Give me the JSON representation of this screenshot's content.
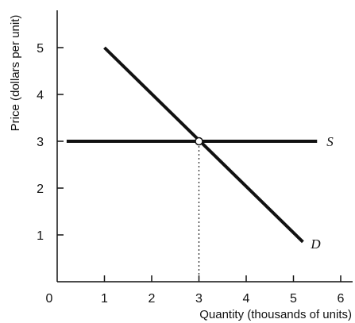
{
  "chart_data": {
    "type": "line",
    "title": "",
    "xlabel": "Quantity (thousands of units)",
    "ylabel": "Price (dollars per unit)",
    "xlim": [
      0,
      6.3
    ],
    "ylim": [
      0,
      5.8
    ],
    "x_ticks": [
      0,
      1,
      2,
      3,
      4,
      5,
      6
    ],
    "y_ticks": [
      1,
      2,
      3,
      4,
      5
    ],
    "grid": false,
    "legend": "none",
    "series": [
      {
        "name": "S",
        "x": [
          0.2,
          5.5
        ],
        "y": [
          3,
          3
        ],
        "color": "#111111"
      },
      {
        "name": "D",
        "x": [
          1.0,
          5.2
        ],
        "y": [
          5.0,
          0.85
        ],
        "color": "#111111"
      }
    ],
    "annotations": [
      {
        "kind": "equilibrium-point",
        "x": 3,
        "y": 3
      },
      {
        "kind": "dotted-guide",
        "x": 3,
        "y_from": 3,
        "y_to": 0
      }
    ]
  }
}
